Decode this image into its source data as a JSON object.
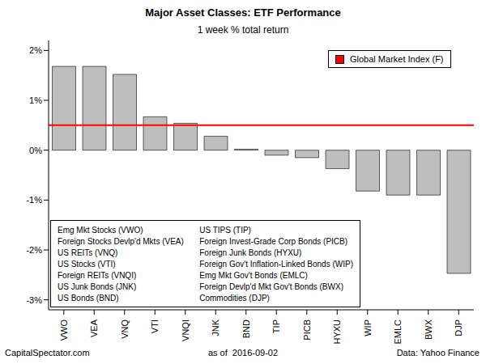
{
  "chart_data": {
    "type": "bar",
    "title": "Major Asset Classes: ETF Performance",
    "subtitle": "1 week % total return",
    "categories": [
      "VWO",
      "VEA",
      "VNQ",
      "VTI",
      "VNQI",
      "JNK",
      "BND",
      "TIP",
      "PICB",
      "HYXU",
      "WIP",
      "EMLC",
      "BWX",
      "DJP"
    ],
    "values": [
      1.68,
      1.68,
      1.52,
      0.67,
      0.54,
      0.28,
      0.02,
      -0.1,
      -0.15,
      -0.37,
      -0.82,
      -0.9,
      -0.9,
      -2.47
    ],
    "color": "#bebebe",
    "ylim": [
      -3.2,
      2.2
    ],
    "yticks": [
      {
        "value": -3,
        "label": "-3%"
      },
      {
        "value": -2,
        "label": "-2%"
      },
      {
        "value": -1,
        "label": "-1%"
      },
      {
        "value": 0,
        "label": "0%"
      },
      {
        "value": 1,
        "label": "1%"
      },
      {
        "value": 2,
        "label": "2%"
      }
    ],
    "grid": false,
    "reference_line": {
      "name": "Global Market Index (F)",
      "value": 0.5,
      "color": "#ff0000"
    },
    "legend": "top-right",
    "descriptions": [
      "Emg Mkt Stocks (VWO)",
      "Foreign Stocks Devlp'd Mkts (VEA)",
      "US REITs (VNQ)",
      "US Stocks (VTI)",
      "Foreign REITs (VNQI)",
      "US Junk Bonds (JNK)",
      "US Bonds (BND)",
      "US TIPS (TIP)",
      "Foreign Invest-Grade Corp Bonds (PICB)",
      "Foreign Junk Bonds (HYXU)",
      "Foreign Gov't Inflation-Linked Bonds (WIP)",
      "Emg Mkt Gov't Bonds (EMLC)",
      "Foreign Devlp'd Mkt Gov't Bonds (BWX)",
      "Commodities (DJP)"
    ],
    "footer": [
      "CapitalSpectator.com",
      "as of  2016-09-02",
      "Data: Yahoo Finance"
    ]
  }
}
